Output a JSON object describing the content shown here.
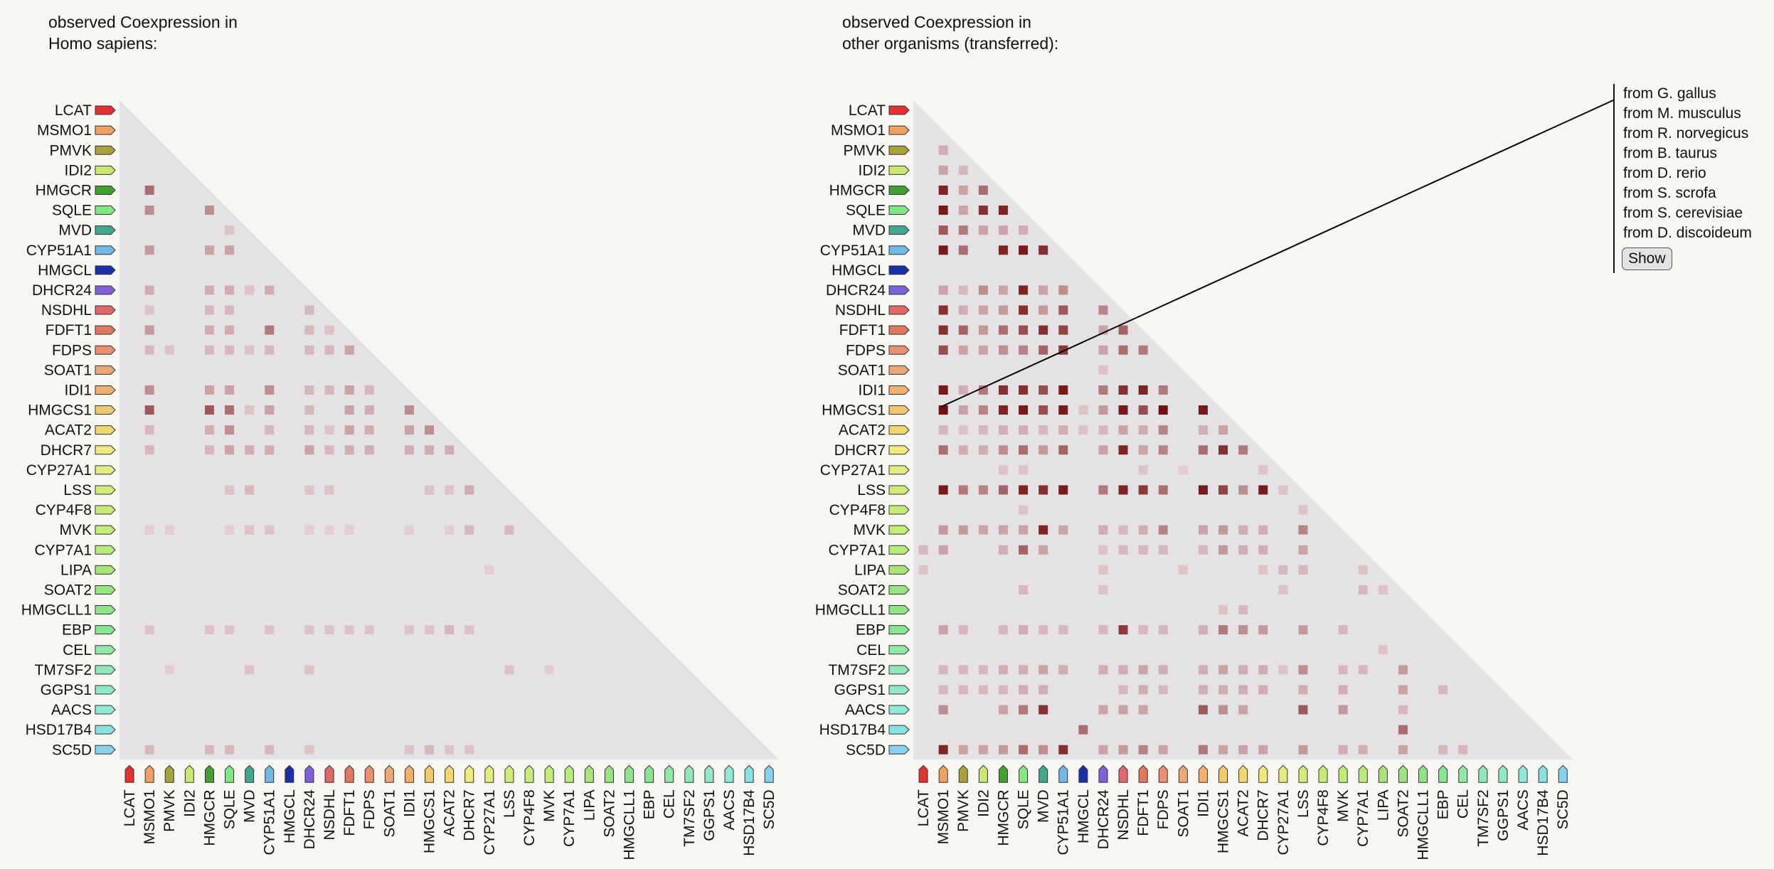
{
  "panels": [
    {
      "title": "observed Coexpression in\nHomo sapiens:"
    },
    {
      "title": "observed Coexpression in\nother organisms (transferred):"
    }
  ],
  "genes": [
    "LCAT",
    "MSMO1",
    "PMVK",
    "IDI2",
    "HMGCR",
    "SQLE",
    "MVD",
    "CYP51A1",
    "HMGCL",
    "DHCR24",
    "NSDHL",
    "FDFT1",
    "FDPS",
    "SOAT1",
    "IDI1",
    "HMGCS1",
    "ACAT2",
    "DHCR7",
    "CYP27A1",
    "LSS",
    "CYP4F8",
    "MVK",
    "CYP7A1",
    "LIPA",
    "SOAT2",
    "HMGCLL1",
    "EBP",
    "CEL",
    "TM7SF2",
    "GGPS1",
    "AACS",
    "HSD17B4",
    "SC5D"
  ],
  "gene_colors": [
    "#e53030",
    "#f0a060",
    "#a8a038",
    "#c8e870",
    "#40a030",
    "#80e880",
    "#40a890",
    "#70b8e8",
    "#1830a8",
    "#8060d8",
    "#e06868",
    "#e07860",
    "#e89070",
    "#e8a878",
    "#f0b070",
    "#f0c870",
    "#f0d870",
    "#f0e880",
    "#e0ec80",
    "#d0ec78",
    "#c8ec78",
    "#c0ec78",
    "#b8ec78",
    "#a8e478",
    "#98e480",
    "#90e488",
    "#88e490",
    "#90e8a8",
    "#90e8b8",
    "#90e8c8",
    "#90e8d8",
    "#88e0e0",
    "#88d0ec"
  ],
  "colors": {
    "background": "#f7f6f3",
    "triangle": "#e4e2e4",
    "cell_dark": "#701010",
    "cell_light": "#f0e2e4"
  },
  "matrix_left": [
    [
      4,
      1,
      0.55
    ],
    [
      5,
      1,
      0.4
    ],
    [
      5,
      4,
      0.4
    ],
    [
      6,
      5,
      0.15
    ],
    [
      7,
      1,
      0.35
    ],
    [
      7,
      4,
      0.3
    ],
    [
      7,
      5,
      0.3
    ],
    [
      9,
      1,
      0.25
    ],
    [
      9,
      4,
      0.25
    ],
    [
      9,
      5,
      0.25
    ],
    [
      9,
      6,
      0.15
    ],
    [
      9,
      7,
      0.25
    ],
    [
      10,
      1,
      0.15
    ],
    [
      10,
      4,
      0.2
    ],
    [
      10,
      5,
      0.2
    ],
    [
      10,
      9,
      0.2
    ],
    [
      11,
      1,
      0.35
    ],
    [
      11,
      4,
      0.25
    ],
    [
      11,
      5,
      0.25
    ],
    [
      11,
      7,
      0.5
    ],
    [
      11,
      9,
      0.2
    ],
    [
      11,
      10,
      0.15
    ],
    [
      12,
      1,
      0.2
    ],
    [
      12,
      2,
      0.15
    ],
    [
      12,
      4,
      0.2
    ],
    [
      12,
      5,
      0.2
    ],
    [
      12,
      6,
      0.15
    ],
    [
      12,
      7,
      0.2
    ],
    [
      12,
      9,
      0.2
    ],
    [
      12,
      10,
      0.2
    ],
    [
      12,
      11,
      0.3
    ],
    [
      14,
      1,
      0.4
    ],
    [
      14,
      4,
      0.3
    ],
    [
      14,
      5,
      0.3
    ],
    [
      14,
      7,
      0.4
    ],
    [
      14,
      9,
      0.2
    ],
    [
      14,
      10,
      0.2
    ],
    [
      14,
      11,
      0.3
    ],
    [
      14,
      12,
      0.2
    ],
    [
      15,
      1,
      0.65
    ],
    [
      15,
      4,
      0.65
    ],
    [
      15,
      5,
      0.55
    ],
    [
      15,
      6,
      0.15
    ],
    [
      15,
      7,
      0.3
    ],
    [
      15,
      9,
      0.2
    ],
    [
      15,
      11,
      0.3
    ],
    [
      15,
      12,
      0.25
    ],
    [
      15,
      14,
      0.4
    ],
    [
      16,
      1,
      0.2
    ],
    [
      16,
      4,
      0.25
    ],
    [
      16,
      5,
      0.4
    ],
    [
      16,
      7,
      0.2
    ],
    [
      16,
      9,
      0.2
    ],
    [
      16,
      10,
      0.15
    ],
    [
      16,
      11,
      0.3
    ],
    [
      16,
      12,
      0.25
    ],
    [
      16,
      14,
      0.3
    ],
    [
      16,
      15,
      0.4
    ],
    [
      17,
      1,
      0.2
    ],
    [
      17,
      4,
      0.2
    ],
    [
      17,
      5,
      0.3
    ],
    [
      17,
      6,
      0.25
    ],
    [
      17,
      7,
      0.25
    ],
    [
      17,
      9,
      0.3
    ],
    [
      17,
      10,
      0.2
    ],
    [
      17,
      11,
      0.25
    ],
    [
      17,
      12,
      0.25
    ],
    [
      17,
      14,
      0.25
    ],
    [
      17,
      15,
      0.25
    ],
    [
      17,
      16,
      0.25
    ],
    [
      19,
      5,
      0.15
    ],
    [
      19,
      6,
      0.2
    ],
    [
      19,
      9,
      0.15
    ],
    [
      19,
      10,
      0.15
    ],
    [
      19,
      15,
      0.15
    ],
    [
      19,
      16,
      0.15
    ],
    [
      19,
      17,
      0.25
    ],
    [
      21,
      1,
      0.1
    ],
    [
      21,
      2,
      0.1
    ],
    [
      21,
      5,
      0.1
    ],
    [
      21,
      6,
      0.15
    ],
    [
      21,
      7,
      0.15
    ],
    [
      21,
      9,
      0.1
    ],
    [
      21,
      10,
      0.1
    ],
    [
      21,
      11,
      0.1
    ],
    [
      21,
      14,
      0.1
    ],
    [
      21,
      16,
      0.1
    ],
    [
      21,
      17,
      0.2
    ],
    [
      21,
      19,
      0.2
    ],
    [
      23,
      18,
      0.1
    ],
    [
      26,
      1,
      0.15
    ],
    [
      26,
      4,
      0.15
    ],
    [
      26,
      5,
      0.15
    ],
    [
      26,
      7,
      0.15
    ],
    [
      26,
      9,
      0.15
    ],
    [
      26,
      10,
      0.15
    ],
    [
      26,
      11,
      0.15
    ],
    [
      26,
      12,
      0.15
    ],
    [
      26,
      14,
      0.15
    ],
    [
      26,
      15,
      0.15
    ],
    [
      26,
      16,
      0.2
    ],
    [
      26,
      17,
      0.15
    ],
    [
      28,
      2,
      0.1
    ],
    [
      28,
      6,
      0.15
    ],
    [
      28,
      9,
      0.15
    ],
    [
      28,
      19,
      0.15
    ],
    [
      28,
      21,
      0.1
    ],
    [
      32,
      1,
      0.2
    ],
    [
      32,
      4,
      0.2
    ],
    [
      32,
      5,
      0.2
    ],
    [
      32,
      7,
      0.2
    ],
    [
      32,
      9,
      0.15
    ],
    [
      32,
      14,
      0.15
    ],
    [
      32,
      15,
      0.2
    ],
    [
      32,
      16,
      0.15
    ],
    [
      32,
      17,
      0.15
    ]
  ],
  "matrix_right": [
    [
      2,
      1,
      0.25
    ],
    [
      3,
      1,
      0.3
    ],
    [
      3,
      2,
      0.2
    ],
    [
      4,
      1,
      0.9
    ],
    [
      4,
      2,
      0.3
    ],
    [
      4,
      3,
      0.55
    ],
    [
      5,
      1,
      0.95
    ],
    [
      5,
      2,
      0.3
    ],
    [
      5,
      3,
      0.85
    ],
    [
      5,
      4,
      0.9
    ],
    [
      6,
      1,
      0.65
    ],
    [
      6,
      2,
      0.5
    ],
    [
      6,
      3,
      0.3
    ],
    [
      6,
      4,
      0.3
    ],
    [
      6,
      5,
      0.25
    ],
    [
      7,
      1,
      0.95
    ],
    [
      7,
      2,
      0.55
    ],
    [
      7,
      4,
      0.9
    ],
    [
      7,
      5,
      0.95
    ],
    [
      7,
      6,
      0.85
    ],
    [
      9,
      1,
      0.3
    ],
    [
      9,
      2,
      0.2
    ],
    [
      9,
      3,
      0.4
    ],
    [
      9,
      4,
      0.3
    ],
    [
      9,
      5,
      0.9
    ],
    [
      9,
      6,
      0.3
    ],
    [
      9,
      7,
      0.4
    ],
    [
      10,
      1,
      0.85
    ],
    [
      10,
      2,
      0.25
    ],
    [
      10,
      3,
      0.3
    ],
    [
      10,
      4,
      0.35
    ],
    [
      10,
      5,
      0.85
    ],
    [
      10,
      6,
      0.35
    ],
    [
      10,
      7,
      0.65
    ],
    [
      10,
      9,
      0.45
    ],
    [
      11,
      1,
      0.85
    ],
    [
      11,
      2,
      0.6
    ],
    [
      11,
      3,
      0.35
    ],
    [
      11,
      4,
      0.55
    ],
    [
      11,
      5,
      0.7
    ],
    [
      11,
      6,
      0.85
    ],
    [
      11,
      7,
      0.75
    ],
    [
      11,
      9,
      0.3
    ],
    [
      11,
      10,
      0.6
    ],
    [
      12,
      1,
      0.7
    ],
    [
      12,
      2,
      0.3
    ],
    [
      12,
      3,
      0.3
    ],
    [
      12,
      4,
      0.4
    ],
    [
      12,
      5,
      0.45
    ],
    [
      12,
      6,
      0.6
    ],
    [
      12,
      7,
      0.8
    ],
    [
      12,
      9,
      0.3
    ],
    [
      12,
      10,
      0.55
    ],
    [
      12,
      11,
      0.5
    ],
    [
      13,
      9,
      0.15
    ],
    [
      14,
      1,
      0.95
    ],
    [
      14,
      2,
      0.25
    ],
    [
      14,
      3,
      0.5
    ],
    [
      14,
      4,
      0.85
    ],
    [
      14,
      5,
      0.85
    ],
    [
      14,
      6,
      0.7
    ],
    [
      14,
      7,
      0.95
    ],
    [
      14,
      9,
      0.5
    ],
    [
      14,
      10,
      0.85
    ],
    [
      14,
      11,
      0.9
    ],
    [
      14,
      12,
      0.5
    ],
    [
      15,
      1,
      1.0
    ],
    [
      15,
      2,
      0.3
    ],
    [
      15,
      3,
      0.45
    ],
    [
      15,
      4,
      0.9
    ],
    [
      15,
      5,
      0.95
    ],
    [
      15,
      6,
      0.7
    ],
    [
      15,
      7,
      0.95
    ],
    [
      15,
      8,
      0.15
    ],
    [
      15,
      9,
      0.35
    ],
    [
      15,
      10,
      0.95
    ],
    [
      15,
      11,
      0.7
    ],
    [
      15,
      12,
      1.0
    ],
    [
      15,
      14,
      0.95
    ],
    [
      16,
      1,
      0.2
    ],
    [
      16,
      2,
      0.15
    ],
    [
      16,
      3,
      0.2
    ],
    [
      16,
      4,
      0.25
    ],
    [
      16,
      5,
      0.25
    ],
    [
      16,
      6,
      0.2
    ],
    [
      16,
      7,
      0.25
    ],
    [
      16,
      8,
      0.15
    ],
    [
      16,
      9,
      0.2
    ],
    [
      16,
      10,
      0.3
    ],
    [
      16,
      11,
      0.25
    ],
    [
      16,
      12,
      0.45
    ],
    [
      16,
      14,
      0.25
    ],
    [
      16,
      15,
      0.3
    ],
    [
      17,
      1,
      0.55
    ],
    [
      17,
      2,
      0.25
    ],
    [
      17,
      3,
      0.25
    ],
    [
      17,
      4,
      0.4
    ],
    [
      17,
      5,
      0.55
    ],
    [
      17,
      6,
      0.35
    ],
    [
      17,
      7,
      0.6
    ],
    [
      17,
      9,
      0.3
    ],
    [
      17,
      10,
      0.9
    ],
    [
      17,
      11,
      0.3
    ],
    [
      17,
      12,
      0.45
    ],
    [
      17,
      14,
      0.55
    ],
    [
      17,
      15,
      0.85
    ],
    [
      17,
      16,
      0.5
    ],
    [
      18,
      4,
      0.15
    ],
    [
      18,
      5,
      0.15
    ],
    [
      18,
      11,
      0.15
    ],
    [
      18,
      13,
      0.1
    ],
    [
      18,
      17,
      0.15
    ],
    [
      19,
      1,
      0.95
    ],
    [
      19,
      2,
      0.5
    ],
    [
      19,
      3,
      0.45
    ],
    [
      19,
      4,
      0.6
    ],
    [
      19,
      5,
      0.9
    ],
    [
      19,
      6,
      0.85
    ],
    [
      19,
      7,
      0.95
    ],
    [
      19,
      9,
      0.5
    ],
    [
      19,
      10,
      0.9
    ],
    [
      19,
      11,
      0.8
    ],
    [
      19,
      12,
      0.55
    ],
    [
      19,
      14,
      0.95
    ],
    [
      19,
      15,
      0.75
    ],
    [
      19,
      16,
      0.4
    ],
    [
      19,
      17,
      0.95
    ],
    [
      19,
      18,
      0.15
    ],
    [
      20,
      5,
      0.15
    ],
    [
      20,
      19,
      0.15
    ],
    [
      21,
      1,
      0.35
    ],
    [
      21,
      2,
      0.35
    ],
    [
      21,
      3,
      0.3
    ],
    [
      21,
      4,
      0.3
    ],
    [
      21,
      5,
      0.3
    ],
    [
      21,
      6,
      0.9
    ],
    [
      21,
      7,
      0.3
    ],
    [
      21,
      9,
      0.25
    ],
    [
      21,
      10,
      0.2
    ],
    [
      21,
      11,
      0.25
    ],
    [
      21,
      12,
      0.45
    ],
    [
      21,
      14,
      0.3
    ],
    [
      21,
      15,
      0.35
    ],
    [
      21,
      16,
      0.25
    ],
    [
      21,
      17,
      0.25
    ],
    [
      21,
      19,
      0.45
    ],
    [
      22,
      0,
      0.2
    ],
    [
      22,
      1,
      0.3
    ],
    [
      22,
      4,
      0.25
    ],
    [
      22,
      5,
      0.6
    ],
    [
      22,
      6,
      0.3
    ],
    [
      22,
      9,
      0.15
    ],
    [
      22,
      10,
      0.2
    ],
    [
      22,
      11,
      0.2
    ],
    [
      22,
      12,
      0.2
    ],
    [
      22,
      14,
      0.2
    ],
    [
      22,
      15,
      0.35
    ],
    [
      22,
      16,
      0.25
    ],
    [
      22,
      17,
      0.25
    ],
    [
      22,
      19,
      0.3
    ],
    [
      23,
      0,
      0.15
    ],
    [
      23,
      9,
      0.15
    ],
    [
      23,
      13,
      0.15
    ],
    [
      23,
      17,
      0.15
    ],
    [
      23,
      18,
      0.2
    ],
    [
      23,
      19,
      0.2
    ],
    [
      23,
      22,
      0.15
    ],
    [
      24,
      5,
      0.2
    ],
    [
      24,
      9,
      0.15
    ],
    [
      24,
      18,
      0.15
    ],
    [
      24,
      22,
      0.2
    ],
    [
      24,
      23,
      0.15
    ],
    [
      25,
      15,
      0.15
    ],
    [
      25,
      16,
      0.2
    ],
    [
      26,
      1,
      0.3
    ],
    [
      26,
      2,
      0.2
    ],
    [
      26,
      4,
      0.2
    ],
    [
      26,
      5,
      0.25
    ],
    [
      26,
      6,
      0.2
    ],
    [
      26,
      7,
      0.2
    ],
    [
      26,
      9,
      0.2
    ],
    [
      26,
      10,
      0.8
    ],
    [
      26,
      11,
      0.2
    ],
    [
      26,
      12,
      0.2
    ],
    [
      26,
      14,
      0.25
    ],
    [
      26,
      15,
      0.5
    ],
    [
      26,
      16,
      0.4
    ],
    [
      26,
      17,
      0.35
    ],
    [
      26,
      19,
      0.35
    ],
    [
      26,
      21,
      0.2
    ],
    [
      27,
      23,
      0.15
    ],
    [
      28,
      1,
      0.2
    ],
    [
      28,
      2,
      0.2
    ],
    [
      28,
      3,
      0.2
    ],
    [
      28,
      4,
      0.25
    ],
    [
      28,
      5,
      0.25
    ],
    [
      28,
      6,
      0.3
    ],
    [
      28,
      7,
      0.25
    ],
    [
      28,
      9,
      0.25
    ],
    [
      28,
      10,
      0.25
    ],
    [
      28,
      11,
      0.3
    ],
    [
      28,
      12,
      0.25
    ],
    [
      28,
      14,
      0.25
    ],
    [
      28,
      15,
      0.3
    ],
    [
      28,
      16,
      0.25
    ],
    [
      28,
      17,
      0.25
    ],
    [
      28,
      18,
      0.15
    ],
    [
      28,
      19,
      0.4
    ],
    [
      28,
      21,
      0.2
    ],
    [
      28,
      22,
      0.2
    ],
    [
      28,
      24,
      0.35
    ],
    [
      29,
      1,
      0.2
    ],
    [
      29,
      2,
      0.2
    ],
    [
      29,
      3,
      0.2
    ],
    [
      29,
      4,
      0.2
    ],
    [
      29,
      5,
      0.25
    ],
    [
      29,
      6,
      0.25
    ],
    [
      29,
      10,
      0.2
    ],
    [
      29,
      11,
      0.25
    ],
    [
      29,
      12,
      0.2
    ],
    [
      29,
      14,
      0.25
    ],
    [
      29,
      15,
      0.25
    ],
    [
      29,
      16,
      0.25
    ],
    [
      29,
      17,
      0.25
    ],
    [
      29,
      19,
      0.25
    ],
    [
      29,
      21,
      0.25
    ],
    [
      29,
      24,
      0.3
    ],
    [
      29,
      26,
      0.2
    ],
    [
      30,
      1,
      0.4
    ],
    [
      30,
      4,
      0.3
    ],
    [
      30,
      5,
      0.5
    ],
    [
      30,
      6,
      0.85
    ],
    [
      30,
      9,
      0.3
    ],
    [
      30,
      10,
      0.3
    ],
    [
      30,
      11,
      0.3
    ],
    [
      30,
      14,
      0.65
    ],
    [
      30,
      15,
      0.4
    ],
    [
      30,
      16,
      0.3
    ],
    [
      30,
      19,
      0.65
    ],
    [
      30,
      21,
      0.35
    ],
    [
      30,
      24,
      0.2
    ],
    [
      31,
      8,
      0.55
    ],
    [
      31,
      24,
      0.55
    ],
    [
      32,
      1,
      0.9
    ],
    [
      32,
      2,
      0.3
    ],
    [
      32,
      3,
      0.3
    ],
    [
      32,
      4,
      0.35
    ],
    [
      32,
      5,
      0.55
    ],
    [
      32,
      6,
      0.4
    ],
    [
      32,
      7,
      0.85
    ],
    [
      32,
      9,
      0.3
    ],
    [
      32,
      10,
      0.35
    ],
    [
      32,
      11,
      0.45
    ],
    [
      32,
      12,
      0.3
    ],
    [
      32,
      14,
      0.5
    ],
    [
      32,
      15,
      0.3
    ],
    [
      32,
      16,
      0.3
    ],
    [
      32,
      17,
      0.3
    ],
    [
      32,
      19,
      0.35
    ],
    [
      32,
      21,
      0.25
    ],
    [
      32,
      22,
      0.25
    ],
    [
      32,
      24,
      0.3
    ],
    [
      32,
      26,
      0.2
    ],
    [
      32,
      27,
      0.2
    ]
  ],
  "organisms": [
    "from G. gallus",
    "from M. musculus",
    "from R. norvegicus",
    "from B. taurus",
    "from D. rerio",
    "from S. scrofa",
    "from S. cerevisiae",
    "from D. discoideum"
  ],
  "show_button": "Show"
}
